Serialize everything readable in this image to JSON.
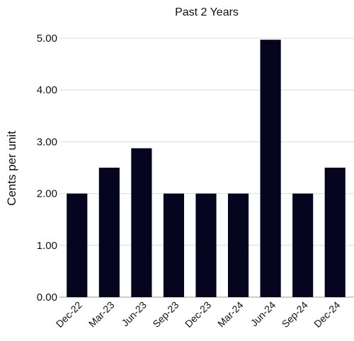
{
  "chart_data": {
    "type": "bar",
    "title": "Past 2 Years",
    "xlabel": "",
    "ylabel": "Cents per unit",
    "categories": [
      "Dec-22",
      "Mar-23",
      "Jun-23",
      "Sep-23",
      "Dec-23",
      "Mar-24",
      "Jun-24",
      "Sep-24",
      "Dec-24"
    ],
    "values": [
      2.0,
      2.5,
      2.875,
      2.0,
      2.0,
      2.0,
      4.97,
      2.0,
      2.5
    ],
    "ylim": [
      0,
      5
    ],
    "yticks": [
      "0.00",
      "1.00",
      "2.00",
      "3.00",
      "4.00",
      "5.00"
    ],
    "grid": true,
    "bar_color": "#050520"
  }
}
